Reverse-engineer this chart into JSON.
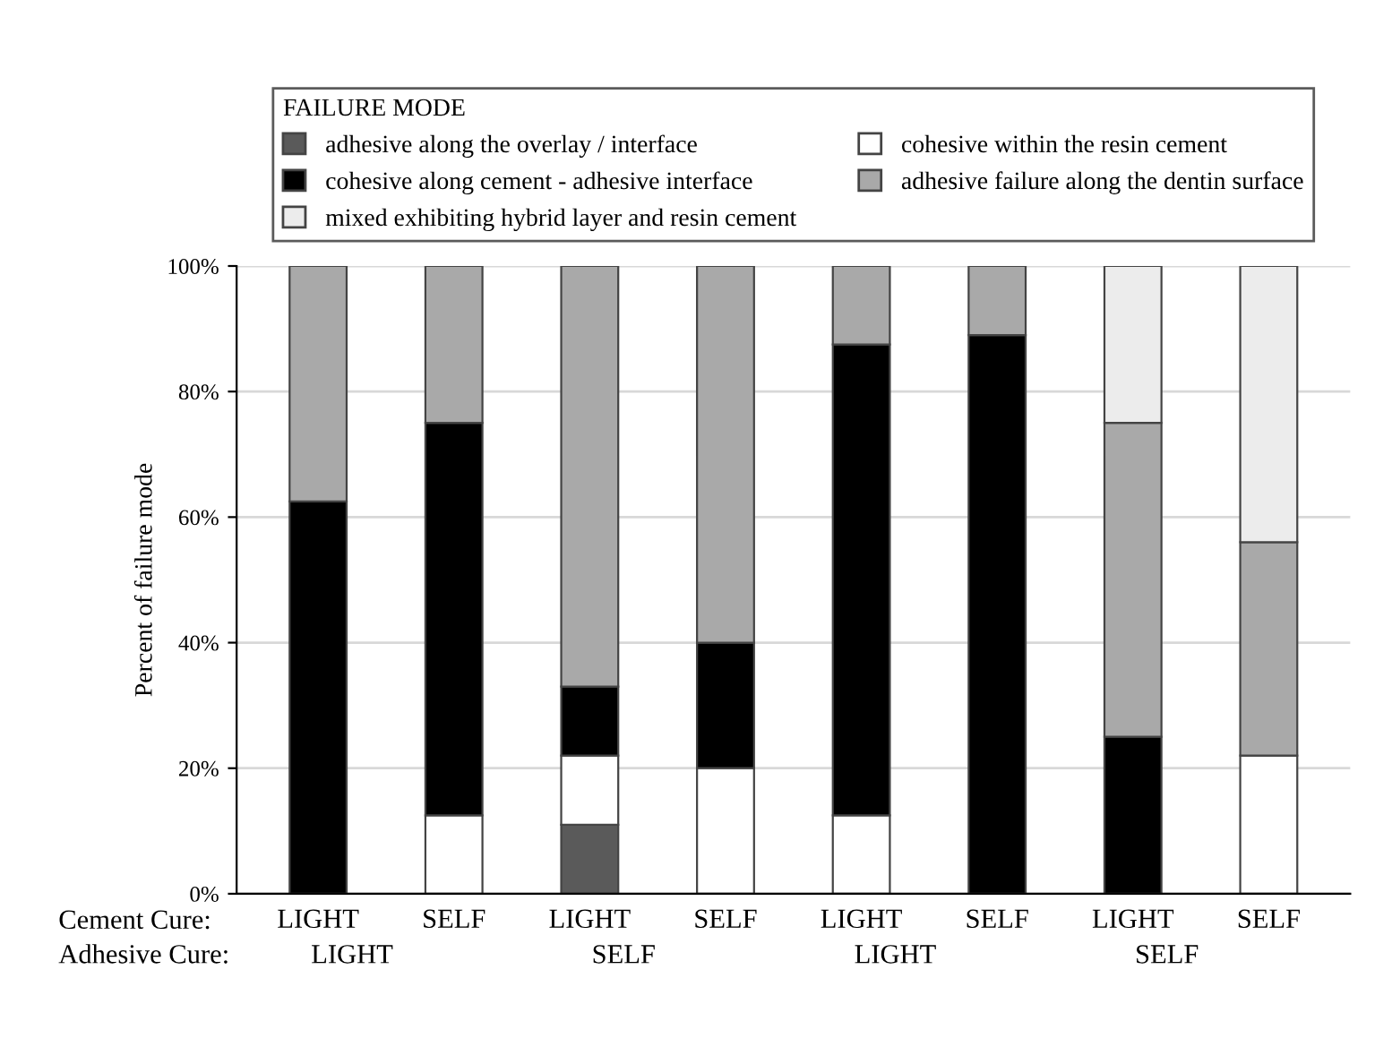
{
  "chart_data": {
    "type": "bar",
    "stacked": true,
    "ylabel": "Percent of failure mode",
    "legend_title": "FAILURE MODE",
    "categories": [
      "LIGHT",
      "SELF",
      "LIGHT",
      "SELF",
      "LIGHT",
      "SELF",
      "LIGHT",
      "SELF"
    ],
    "series": [
      {
        "name": "adhesive along the overlay / interface",
        "color": "#5a5a5a",
        "values": [
          null,
          null,
          11,
          null,
          null,
          null,
          null,
          null
        ]
      },
      {
        "name": "cohesive within the resin cement",
        "color": "#ffffff",
        "values": [
          null,
          12.5,
          11,
          20,
          12.5,
          null,
          null,
          22
        ]
      },
      {
        "name": "cohesive along cement - adhesive interface",
        "color": "#000000",
        "values": [
          62.5,
          62.5,
          11,
          20,
          75,
          89,
          25,
          null
        ]
      },
      {
        "name": "adhesive failure along the dentin surface",
        "color": "#a9a9a9",
        "values": [
          37.5,
          25,
          67,
          60,
          12.5,
          11,
          50,
          34
        ]
      },
      {
        "name": "mixed exhibiting hybrid layer and resin cement",
        "color": "#ececec",
        "values": [
          null,
          null,
          null,
          null,
          null,
          null,
          25,
          44
        ]
      }
    ],
    "ylim": [
      0,
      100
    ],
    "yticks": [
      {
        "value": 0,
        "label": "0%"
      },
      {
        "value": 20,
        "label": "20%"
      },
      {
        "value": 40,
        "label": "40%"
      },
      {
        "value": 60,
        "label": "60%"
      },
      {
        "value": 80,
        "label": "80%"
      },
      {
        "value": 100,
        "label": "100%"
      }
    ],
    "grid": "y",
    "legend": "top",
    "annotations": [
      "Cement Cure:",
      "Adhesive Cure:",
      "LIGHT",
      "SELF",
      "LIGHT",
      "SELF"
    ]
  }
}
